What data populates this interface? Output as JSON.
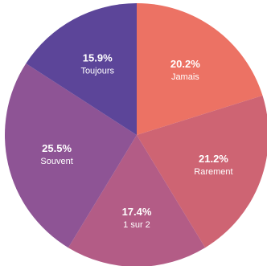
{
  "chart_data": {
    "type": "pie",
    "title": "",
    "start_angle_deg": 0,
    "direction": "clockwise",
    "slices": [
      {
        "label": "Jamais",
        "value": 20.2,
        "value_label": "20.2%",
        "color": "#ec7264"
      },
      {
        "label": "Rarement",
        "value": 21.2,
        "value_label": "21.2%",
        "color": "#ce6473"
      },
      {
        "label": "1 sur 2",
        "value": 17.4,
        "value_label": "17.4%",
        "color": "#b35c86"
      },
      {
        "label": "Souvent",
        "value": 25.5,
        "value_label": "25.5%",
        "color": "#8e5495"
      },
      {
        "label": "Toujours",
        "value": 15.9,
        "value_label": "15.9%",
        "color": "#5c4599"
      }
    ]
  }
}
